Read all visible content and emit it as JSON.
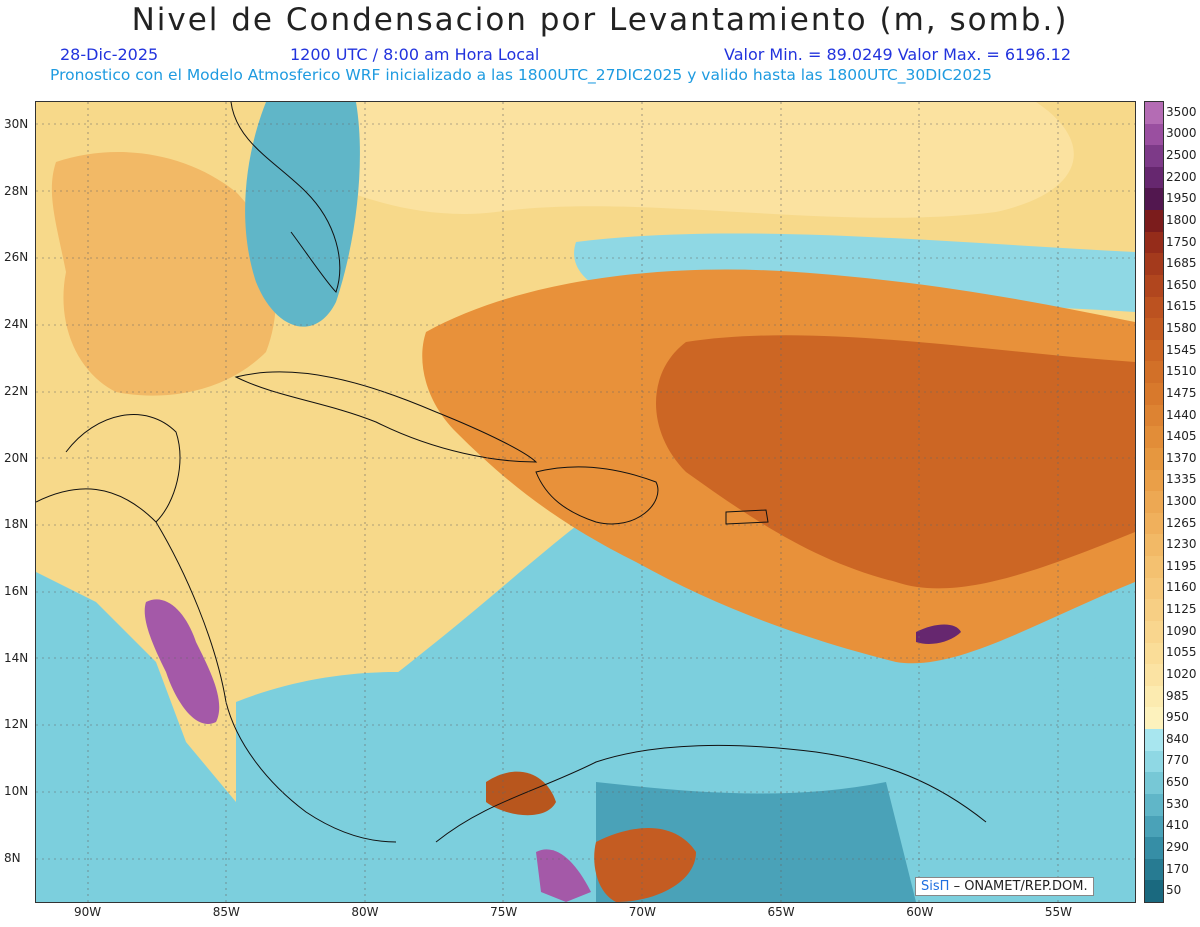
{
  "title": "Nivel de Condensacion por Levantamiento (m, somb.)",
  "date": "28-Dic-2025",
  "time_line": "1200 UTC / 8:00 am Hora Local",
  "min_max": "Valor Min. = 89.0249   Valor Max. = 6196.12",
  "info_line": "Pronostico con el Modelo Atmosferico WRF inicializado a las 1800UTC_27DIC2025 y valido hasta las  1800UTC_30DIC2025",
  "credit": {
    "logo_text": "SisΠ",
    "text": "– ONAMET/REP.DOM."
  },
  "lat_labels": [
    "30N",
    "28N",
    "26N",
    "24N",
    "22N",
    "20N",
    "18N",
    "16N",
    "14N",
    "12N",
    "10N",
    "8N"
  ],
  "lon_labels": [
    "90W",
    "85W",
    "80W",
    "75W",
    "70W",
    "65W",
    "60W",
    "55W"
  ],
  "legend": {
    "labels": [
      "3500",
      "3000",
      "2500",
      "2200",
      "1950",
      "1800",
      "1750",
      "1685",
      "1650",
      "1615",
      "1580",
      "1545",
      "1510",
      "1475",
      "1440",
      "1405",
      "1370",
      "1335",
      "1300",
      "1265",
      "1230",
      "1195",
      "1160",
      "1125",
      "1090",
      "1055",
      "1020",
      "985",
      "950",
      "840",
      "770",
      "650",
      "530",
      "410",
      "290",
      "170",
      "50"
    ],
    "colors": [
      "#b46cb4",
      "#9a4fa0",
      "#7d3a88",
      "#66276f",
      "#52174f",
      "#7b1c1c",
      "#952c1a",
      "#a43a1c",
      "#b1461e",
      "#bc5220",
      "#c45c22",
      "#cc6624",
      "#d27028",
      "#d8792c",
      "#dd8332",
      "#e28d38",
      "#e6973f",
      "#ea9f48",
      "#eda853",
      "#f0b05c",
      "#f2b966",
      "#f4c170",
      "#f6c87a",
      "#f7cf84",
      "#f9d68e",
      "#fadd98",
      "#fbe3a3",
      "#fcebb0",
      "#fdf2bd",
      "#a8e6ef",
      "#8fd8e4",
      "#77c8d6",
      "#60b6c8",
      "#4aa2b8",
      "#368ea6",
      "#277b92",
      "#1a697f"
    ]
  },
  "map_colors": {
    "ocean": "#7ccfdd",
    "orange": "#e8913a",
    "yellow": "#f7d98a",
    "purple": "#a459a8",
    "deep": "#3b8ea2",
    "brown": "#b8561d"
  }
}
